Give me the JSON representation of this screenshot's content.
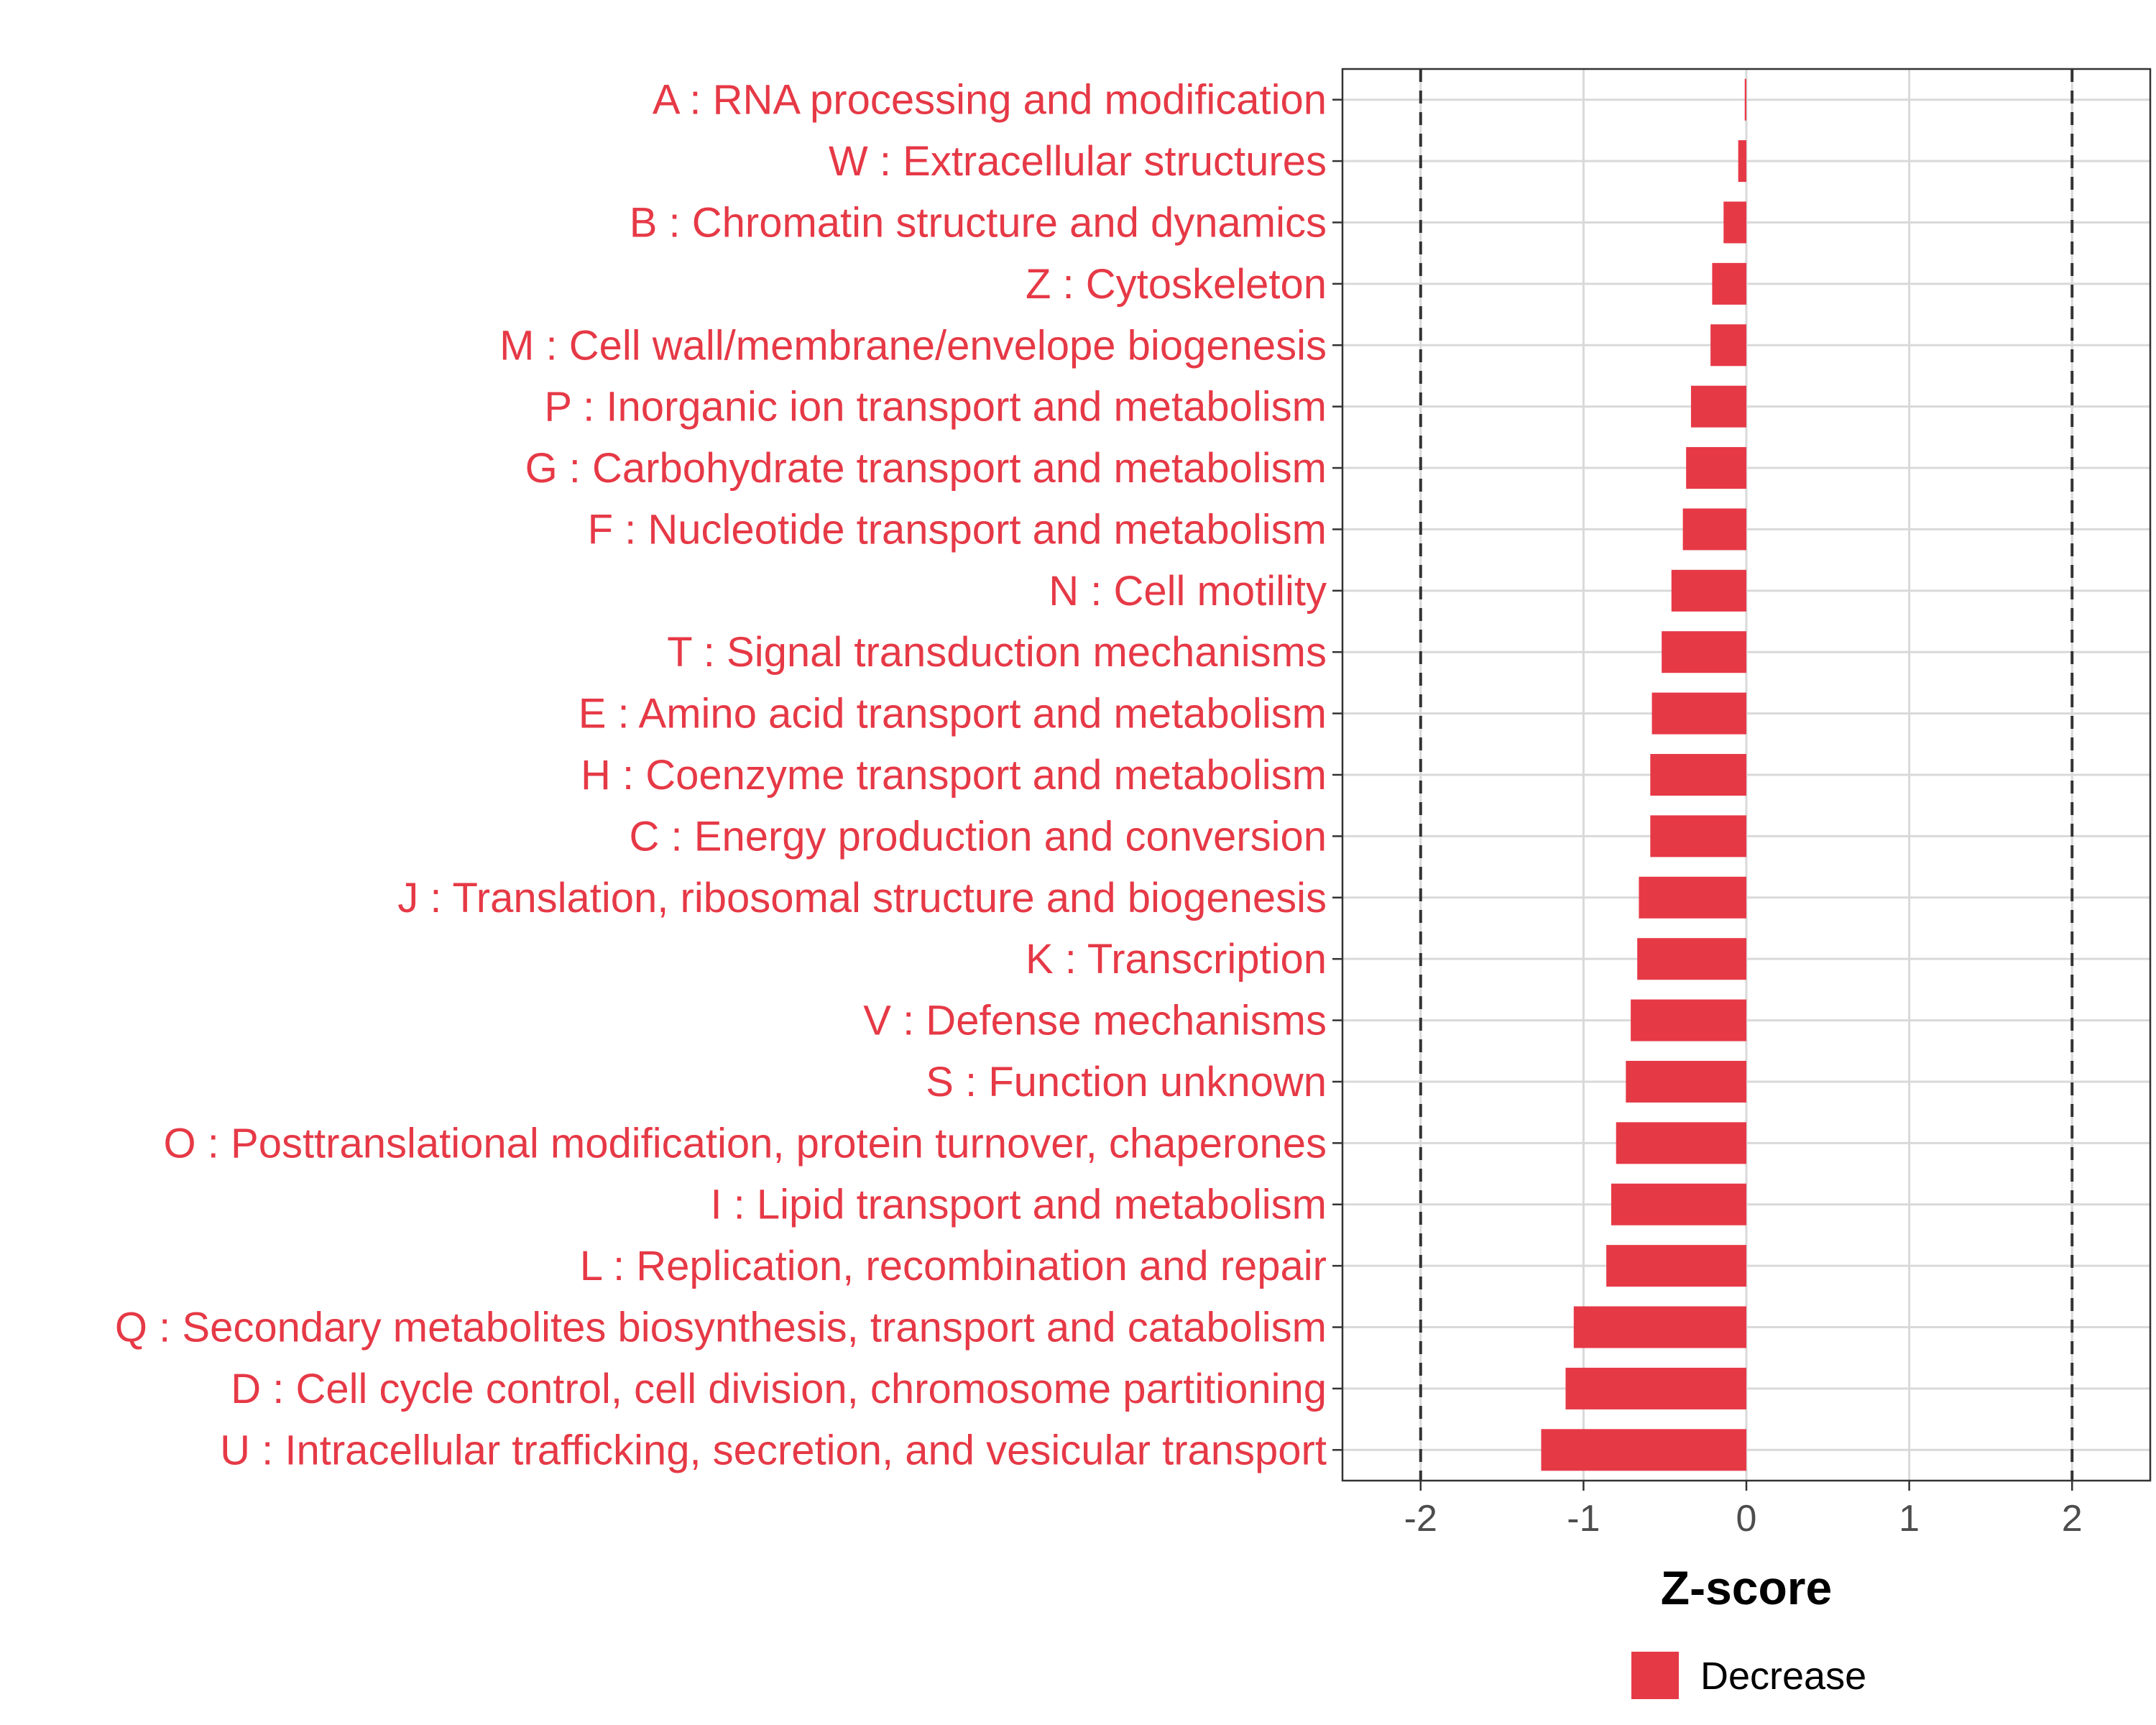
{
  "chart_data": {
    "type": "bar",
    "orientation": "horizontal",
    "categories": [
      "A : RNA processing and modification",
      "W : Extracellular structures",
      "B : Chromatin structure and dynamics",
      "Z : Cytoskeleton",
      "M : Cell wall/membrane/envelope biogenesis",
      "P : Inorganic ion transport and metabolism",
      "G : Carbohydrate transport and metabolism",
      "F : Nucleotide transport and metabolism",
      "N : Cell motility",
      "T : Signal transduction mechanisms",
      "E : Amino acid transport and metabolism",
      "H : Coenzyme transport and metabolism",
      "C : Energy production and conversion",
      "J : Translation, ribosomal structure and biogenesis",
      "K : Transcription",
      "V : Defense mechanisms",
      "S : Function unknown",
      "O : Posttranslational modification, protein turnover, chaperones",
      "I : Lipid transport and metabolism",
      "L : Replication, recombination and repair",
      "Q : Secondary metabolites biosynthesis, transport and catabolism",
      "D : Cell cycle control, cell division, chromosome partitioning",
      "U : Intracellular trafficking, secretion, and vesicular transport"
    ],
    "values": [
      -0.01,
      -0.05,
      -0.14,
      -0.21,
      -0.22,
      -0.34,
      -0.37,
      -0.39,
      -0.46,
      -0.52,
      -0.58,
      -0.59,
      -0.59,
      -0.66,
      -0.67,
      -0.71,
      -0.74,
      -0.8,
      -0.83,
      -0.86,
      -1.06,
      -1.11,
      -1.26
    ],
    "xlabel": "Z-score",
    "ylabel": "",
    "xlim": [
      -2.48,
      2.48
    ],
    "xticks": [
      -2,
      -1,
      0,
      1,
      2
    ],
    "xtick_labels": [
      "-2",
      "-1",
      "0",
      "1",
      "2"
    ],
    "reference_lines": [
      -2,
      2
    ],
    "grid": true,
    "series": [
      {
        "name": "Decrease",
        "color": "#E63946"
      }
    ],
    "legend_position": "bottom",
    "label_color": "#E63946"
  }
}
